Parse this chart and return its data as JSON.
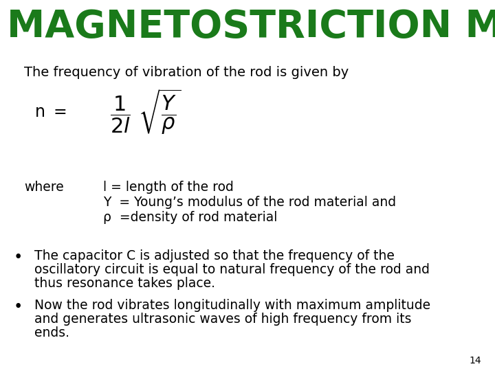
{
  "title": "MAGNETOSTRICTION METHOD",
  "title_color": "#1a7a1a",
  "title_fontsize": 40,
  "bg_color": "#ffffff",
  "subtitle": "The frequency of vibration of the rod is given by",
  "subtitle_fontsize": 14,
  "where_label": "where",
  "where_lines": [
    "l = length of the rod",
    "Y  = Young’s modulus of the rod material and",
    "ρ  =density of rod material"
  ],
  "bullets": [
    "The capacitor C is adjusted so that the frequency of the\noscillatory circuit is equal to natural frequency of the rod and\nthus resonance takes place.",
    "Now the rod vibrates longitudinally with maximum amplitude\nand generates ultrasonic waves of high frequency from its\nends."
  ],
  "page_number": "14",
  "text_color": "#000000",
  "body_fontsize": 13.5,
  "title_bar_color": "#ffffff",
  "green_color": "#1a7a1a"
}
